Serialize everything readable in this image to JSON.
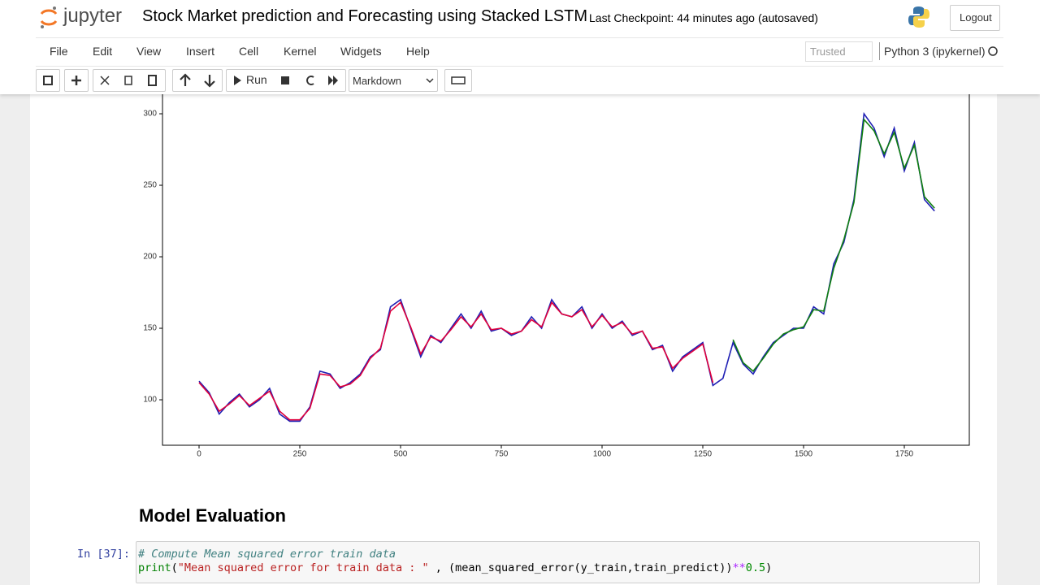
{
  "header": {
    "logo": "jupyter",
    "notebook_title": "Stock Market prediction and Forecasting using Stacked LSTM",
    "checkpoint": "Last Checkpoint: 44 minutes ago",
    "autosave": "(autosaved)",
    "logout": "Logout"
  },
  "menu": {
    "items": [
      "File",
      "Edit",
      "View",
      "Insert",
      "Cell",
      "Kernel",
      "Widgets",
      "Help"
    ],
    "trusted": "Trusted",
    "kernel": "Python 3 (ipykernel)"
  },
  "toolbar": {
    "run": "Run",
    "cell_type": "Markdown"
  },
  "chart_data": {
    "type": "line",
    "x": [
      0,
      25,
      50,
      75,
      100,
      125,
      150,
      175,
      200,
      225,
      250,
      275,
      300,
      325,
      350,
      375,
      400,
      425,
      450,
      475,
      500,
      525,
      550,
      575,
      600,
      625,
      650,
      675,
      700,
      725,
      750,
      775,
      800,
      825,
      850,
      875,
      900,
      925,
      950,
      975,
      1000,
      1025,
      1050,
      1075,
      1100,
      1125,
      1150,
      1175,
      1200,
      1225,
      1250,
      1275,
      1300,
      1325,
      1350,
      1375,
      1400,
      1425,
      1450,
      1475,
      1500,
      1525,
      1550,
      1575,
      1600,
      1625,
      1650,
      1675,
      1700,
      1725,
      1750,
      1775,
      1800,
      1825
    ],
    "series": [
      {
        "color": "#1f1fb4",
        "values": [
          113,
          105,
          90,
          98,
          104,
          95,
          100,
          108,
          90,
          85,
          85,
          95,
          120,
          118,
          108,
          112,
          118,
          130,
          135,
          165,
          170,
          150,
          130,
          145,
          140,
          150,
          160,
          150,
          162,
          148,
          150,
          145,
          148,
          158,
          150,
          170,
          160,
          158,
          165,
          150,
          160,
          150,
          155,
          145,
          148,
          135,
          138,
          120,
          130,
          135,
          140,
          110,
          115,
          140,
          125,
          118,
          130,
          140,
          145,
          150,
          150,
          165,
          160,
          195,
          210,
          240,
          300,
          290,
          270,
          290,
          260,
          280,
          240,
          232
        ]
      },
      {
        "color": "#e0003c",
        "values": [
          112,
          104,
          92,
          97,
          103,
          96,
          101,
          106,
          92,
          86,
          86,
          94,
          118,
          117,
          109,
          111,
          117,
          129,
          136,
          162,
          168,
          151,
          132,
          144,
          141,
          149,
          158,
          151,
          160,
          149,
          150,
          146,
          148,
          156,
          151,
          168,
          160,
          158,
          163,
          151,
          159,
          151,
          154,
          146,
          148,
          136,
          137,
          122,
          129,
          134,
          139,
          112,
          null,
          null,
          null,
          null,
          null,
          null,
          null,
          null,
          null,
          null,
          null,
          null,
          null,
          null,
          null,
          null,
          null,
          null,
          null,
          null,
          null,
          null
        ]
      },
      {
        "color": "#108010",
        "values": [
          null,
          null,
          null,
          null,
          null,
          null,
          null,
          null,
          null,
          null,
          null,
          null,
          null,
          null,
          null,
          null,
          null,
          null,
          null,
          null,
          null,
          null,
          null,
          null,
          null,
          null,
          null,
          null,
          null,
          null,
          null,
          null,
          null,
          null,
          null,
          null,
          null,
          null,
          null,
          null,
          null,
          null,
          null,
          null,
          null,
          null,
          null,
          null,
          null,
          null,
          null,
          null,
          null,
          142,
          126,
          120,
          129,
          139,
          146,
          149,
          151,
          163,
          162,
          192,
          212,
          238,
          296,
          288,
          272,
          287,
          262,
          278,
          242,
          234
        ]
      }
    ],
    "xlim": [
      -90.7,
      1911.3
    ],
    "ylim": [
      68.2,
      322
    ],
    "xticks": [
      0,
      250,
      500,
      750,
      1000,
      1250,
      1500,
      1750
    ],
    "yticks": [
      100,
      150,
      200,
      250,
      300
    ]
  },
  "markdown": {
    "heading": "Model Evaluation"
  },
  "code_cell": {
    "prompt": "In [37]:",
    "comment": "# Compute Mean squared error train data",
    "line2": [
      "print",
      "(",
      "\"Mean squared error for train data : \"",
      " , (mean_squared_error(y_train,train_predict))",
      "**",
      "0.5",
      ")"
    ]
  }
}
